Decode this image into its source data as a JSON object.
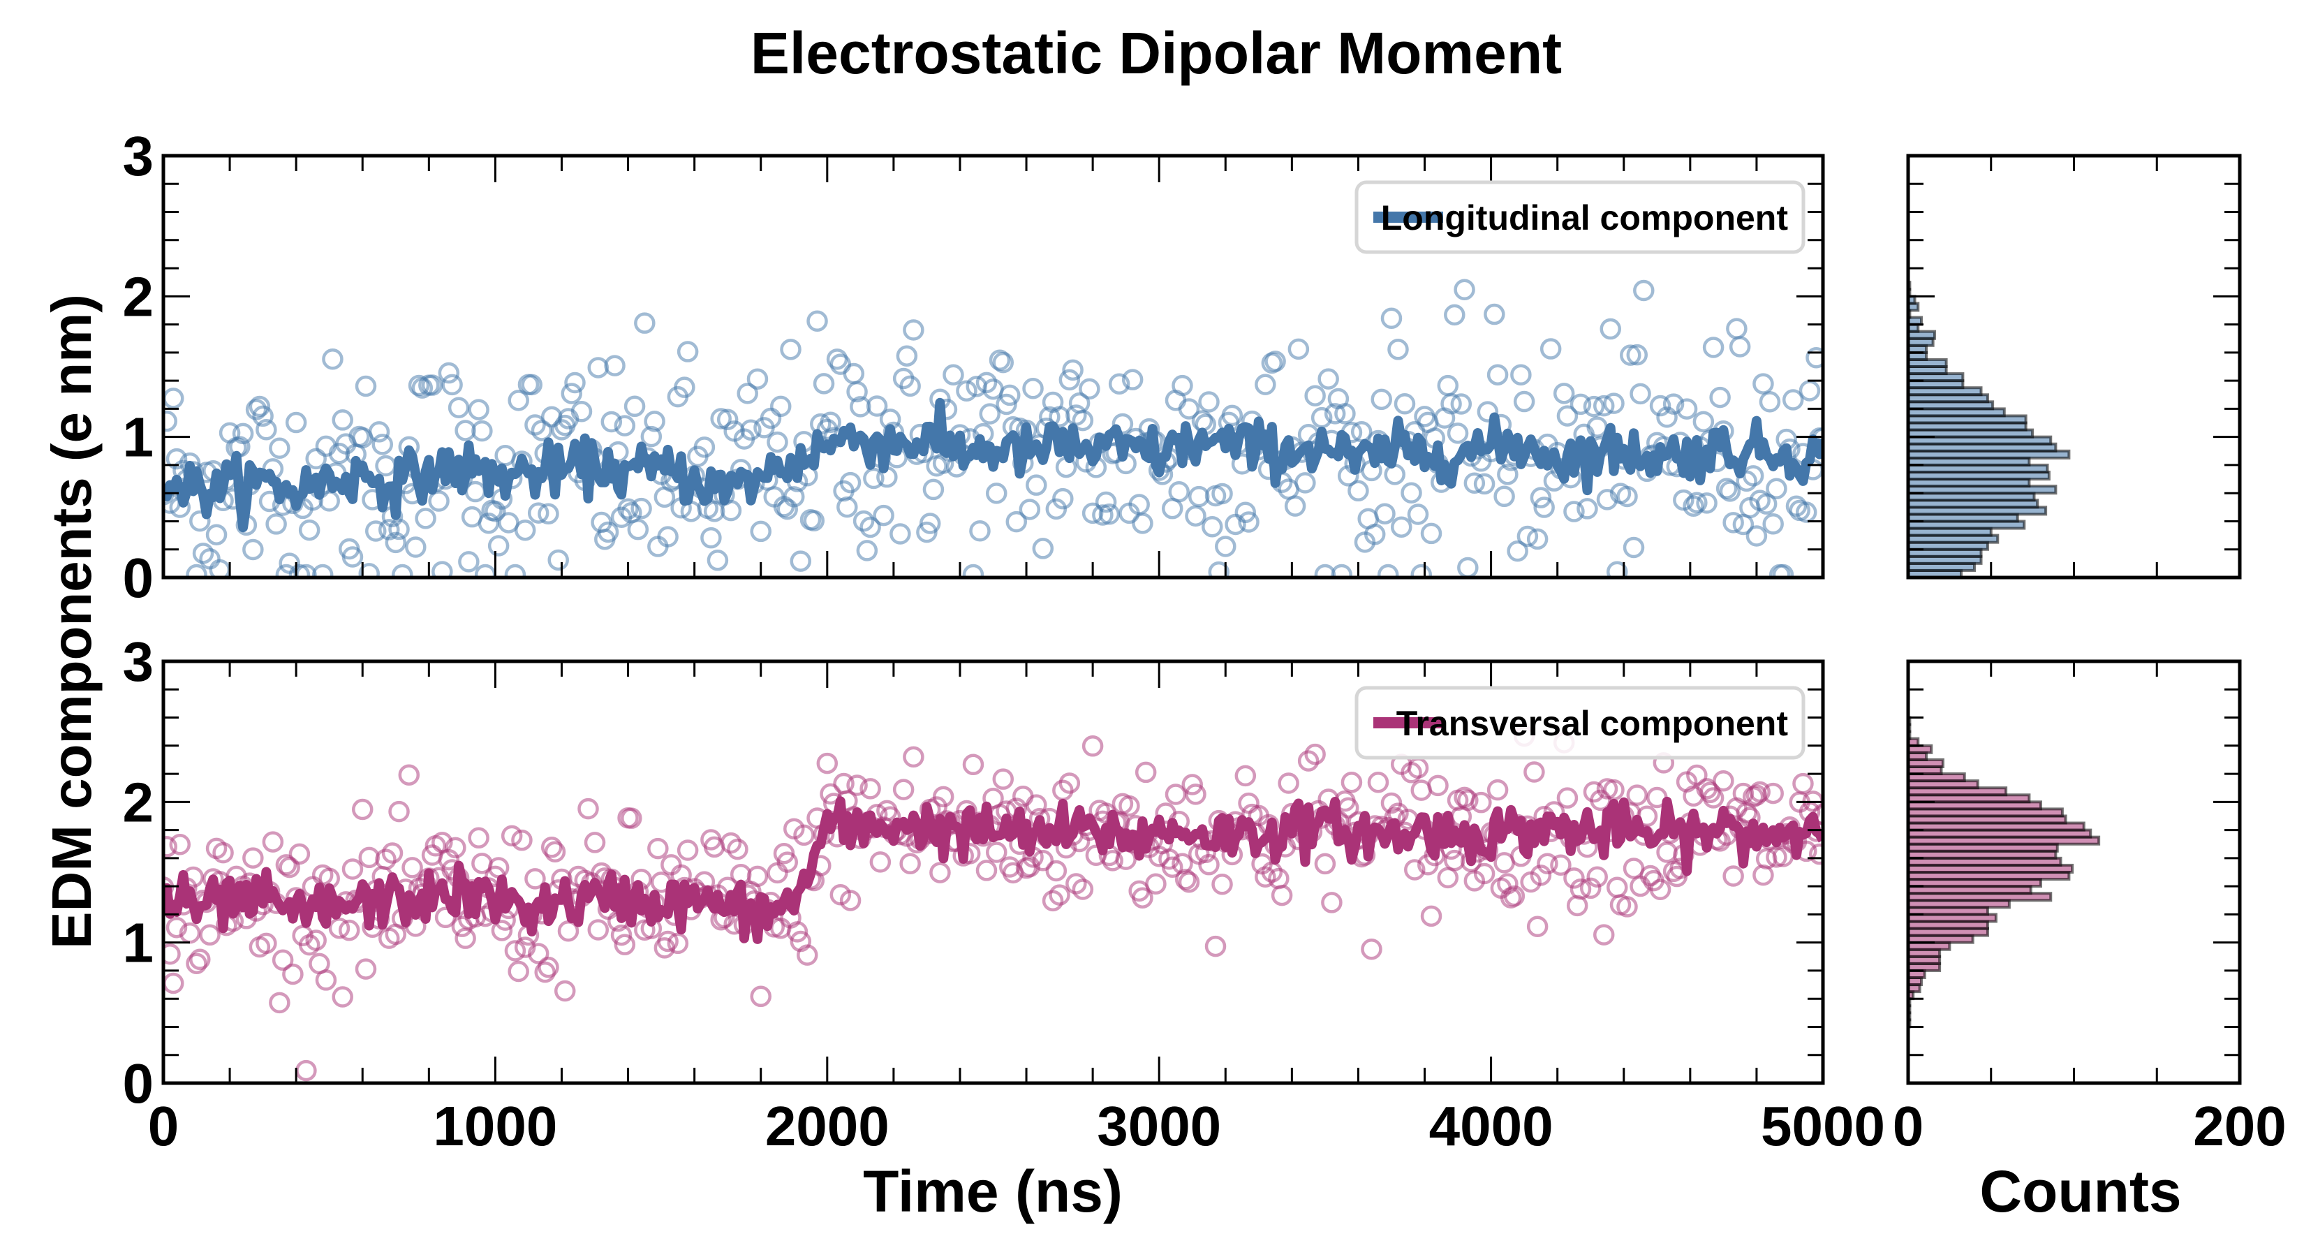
{
  "chart_data": {
    "title": "Electrostatic Dipolar Moment",
    "ylabel": "EDM components (e nm)",
    "panels": [
      {
        "id": "longitudinal",
        "type": "scatter",
        "legend": "Longitudinal component",
        "legend_position": "top-right",
        "color": "#4477aa",
        "xlim": [
          0,
          5000
        ],
        "ylim": [
          0,
          3
        ],
        "yticks": [
          0,
          1,
          2,
          3
        ],
        "x_step": 5,
        "running_avg_every_100ns": [
          0.72,
          0.62,
          0.65,
          0.68,
          0.62,
          0.7,
          0.72,
          0.68,
          0.75,
          0.78,
          0.72,
          0.74,
          0.76,
          0.8,
          0.74,
          0.78,
          0.7,
          0.62,
          0.72,
          0.82,
          0.95,
          1.0,
          0.95,
          0.98,
          0.9,
          0.92,
          0.88,
          0.95,
          0.9,
          0.92,
          0.88,
          0.96,
          0.95,
          0.92,
          0.9,
          0.94,
          0.82,
          0.9,
          0.88,
          0.9,
          0.92,
          0.95,
          0.85,
          0.88,
          0.9,
          0.86,
          0.88,
          0.92,
          0.9,
          0.88,
          0.86
        ],
        "scatter_spread": 0.42
      },
      {
        "id": "transversal",
        "type": "scatter",
        "legend": "Transversal component",
        "legend_position": "top-right",
        "color": "#aa3377",
        "xlim": [
          0,
          5000
        ],
        "ylim": [
          0,
          3
        ],
        "yticks": [
          0,
          1,
          2,
          3
        ],
        "x_step": 5,
        "running_avg_every_100ns": [
          1.3,
          1.25,
          1.28,
          1.3,
          1.2,
          1.25,
          1.28,
          1.3,
          1.32,
          1.35,
          1.3,
          1.25,
          1.28,
          1.3,
          1.32,
          1.28,
          1.3,
          1.25,
          1.2,
          1.28,
          1.82,
          1.8,
          1.85,
          1.82,
          1.78,
          1.8,
          1.76,
          1.78,
          1.8,
          1.75,
          1.78,
          1.8,
          1.76,
          1.78,
          1.8,
          1.82,
          1.78,
          1.75,
          1.8,
          1.76,
          1.78,
          1.8,
          1.82,
          1.78,
          1.8,
          1.76,
          1.78,
          1.8,
          1.76,
          1.8,
          1.82
        ],
        "scatter_spread": 0.28
      }
    ],
    "xlabel": "Time (ns)",
    "xticks": [
      0,
      1000,
      2000,
      3000,
      4000,
      5000
    ],
    "histograms": [
      {
        "id": "longitudinal-hist",
        "type": "bar",
        "orientation": "horizontal",
        "color": "#4477aa",
        "bin_width": 0.05,
        "bin_start": 0.0,
        "counts": [
          32,
          40,
          44,
          44,
          48,
          54,
          50,
          70,
          66,
          83,
          78,
          76,
          89,
          73,
          85,
          84,
          73,
          97,
          89,
          86,
          75,
          71,
          71,
          58,
          51,
          48,
          44,
          33,
          33,
          23,
          23,
          11,
          11,
          15,
          16,
          6,
          8,
          1,
          6,
          4,
          1,
          1
        ]
      },
      {
        "id": "transversal-hist",
        "type": "bar",
        "orientation": "horizontal",
        "color": "#aa3377",
        "bin_width": 0.05,
        "bin_start": 0.4,
        "counts": [
          1,
          1,
          1,
          1,
          3,
          7,
          8,
          10,
          19,
          19,
          19,
          25,
          39,
          48,
          48,
          53,
          48,
          61,
          86,
          74,
          80,
          97,
          99,
          92,
          89,
          90,
          115,
          110,
          106,
          95,
          93,
          80,
          73,
          59,
          42,
          34,
          20,
          21,
          11,
          14,
          6,
          1,
          1,
          1
        ]
      }
    ],
    "hist_xlabel": "Counts",
    "hist_xlim": [
      0,
      200
    ],
    "hist_xticks": [
      0,
      200
    ]
  }
}
